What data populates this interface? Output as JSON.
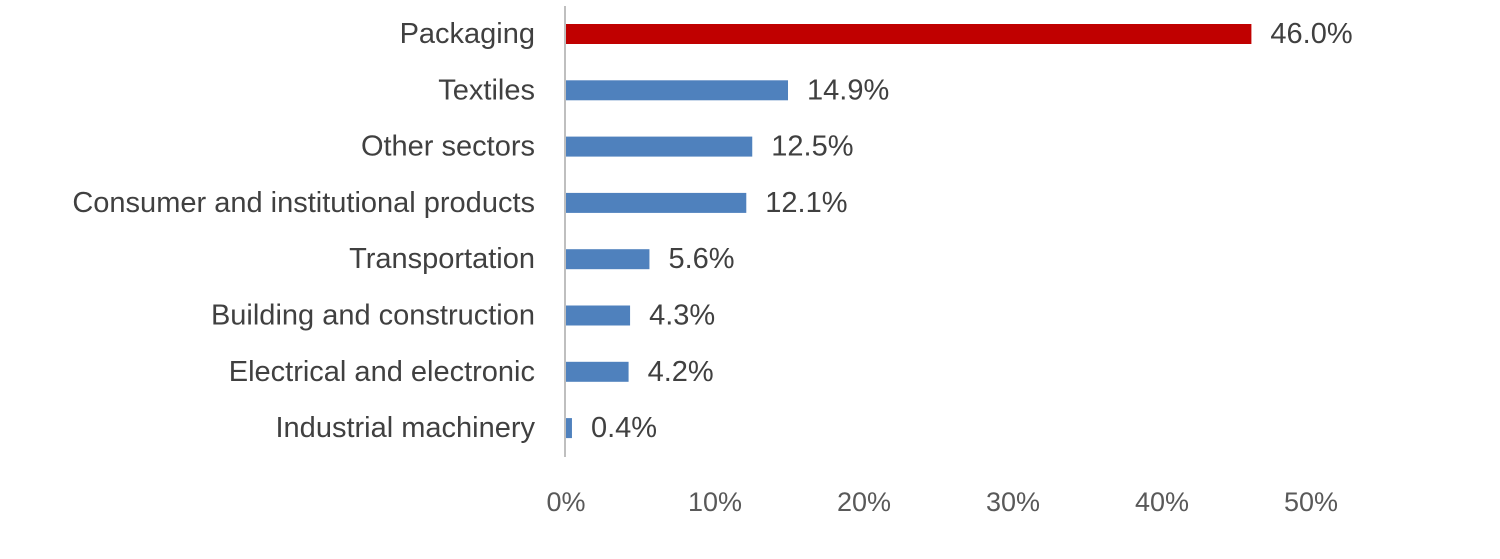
{
  "chart_data": {
    "type": "bar",
    "orientation": "horizontal",
    "categories": [
      "Packaging",
      "Textiles",
      "Other sectors",
      "Consumer and institutional products",
      "Transportation",
      "Building and construction",
      "Electrical and electronic",
      "Industrial machinery"
    ],
    "values": [
      46.0,
      14.9,
      12.5,
      12.1,
      5.6,
      4.3,
      4.2,
      0.4
    ],
    "value_labels": [
      "46.0%",
      "14.9%",
      "12.5%",
      "12.1%",
      "5.6%",
      "4.3%",
      "4.2%",
      "0.4%"
    ],
    "xlim": [
      0,
      50
    ],
    "x_ticks": [
      0,
      10,
      20,
      30,
      40,
      50
    ],
    "x_tick_labels": [
      "0%",
      "10%",
      "20%",
      "30%",
      "40%",
      "50%"
    ],
    "grid": false,
    "legend": "none",
    "colors": {
      "highlight": "#C00000",
      "default": "#4F81BD",
      "axis": "#BFBFBF"
    },
    "highlight_index": 0
  }
}
